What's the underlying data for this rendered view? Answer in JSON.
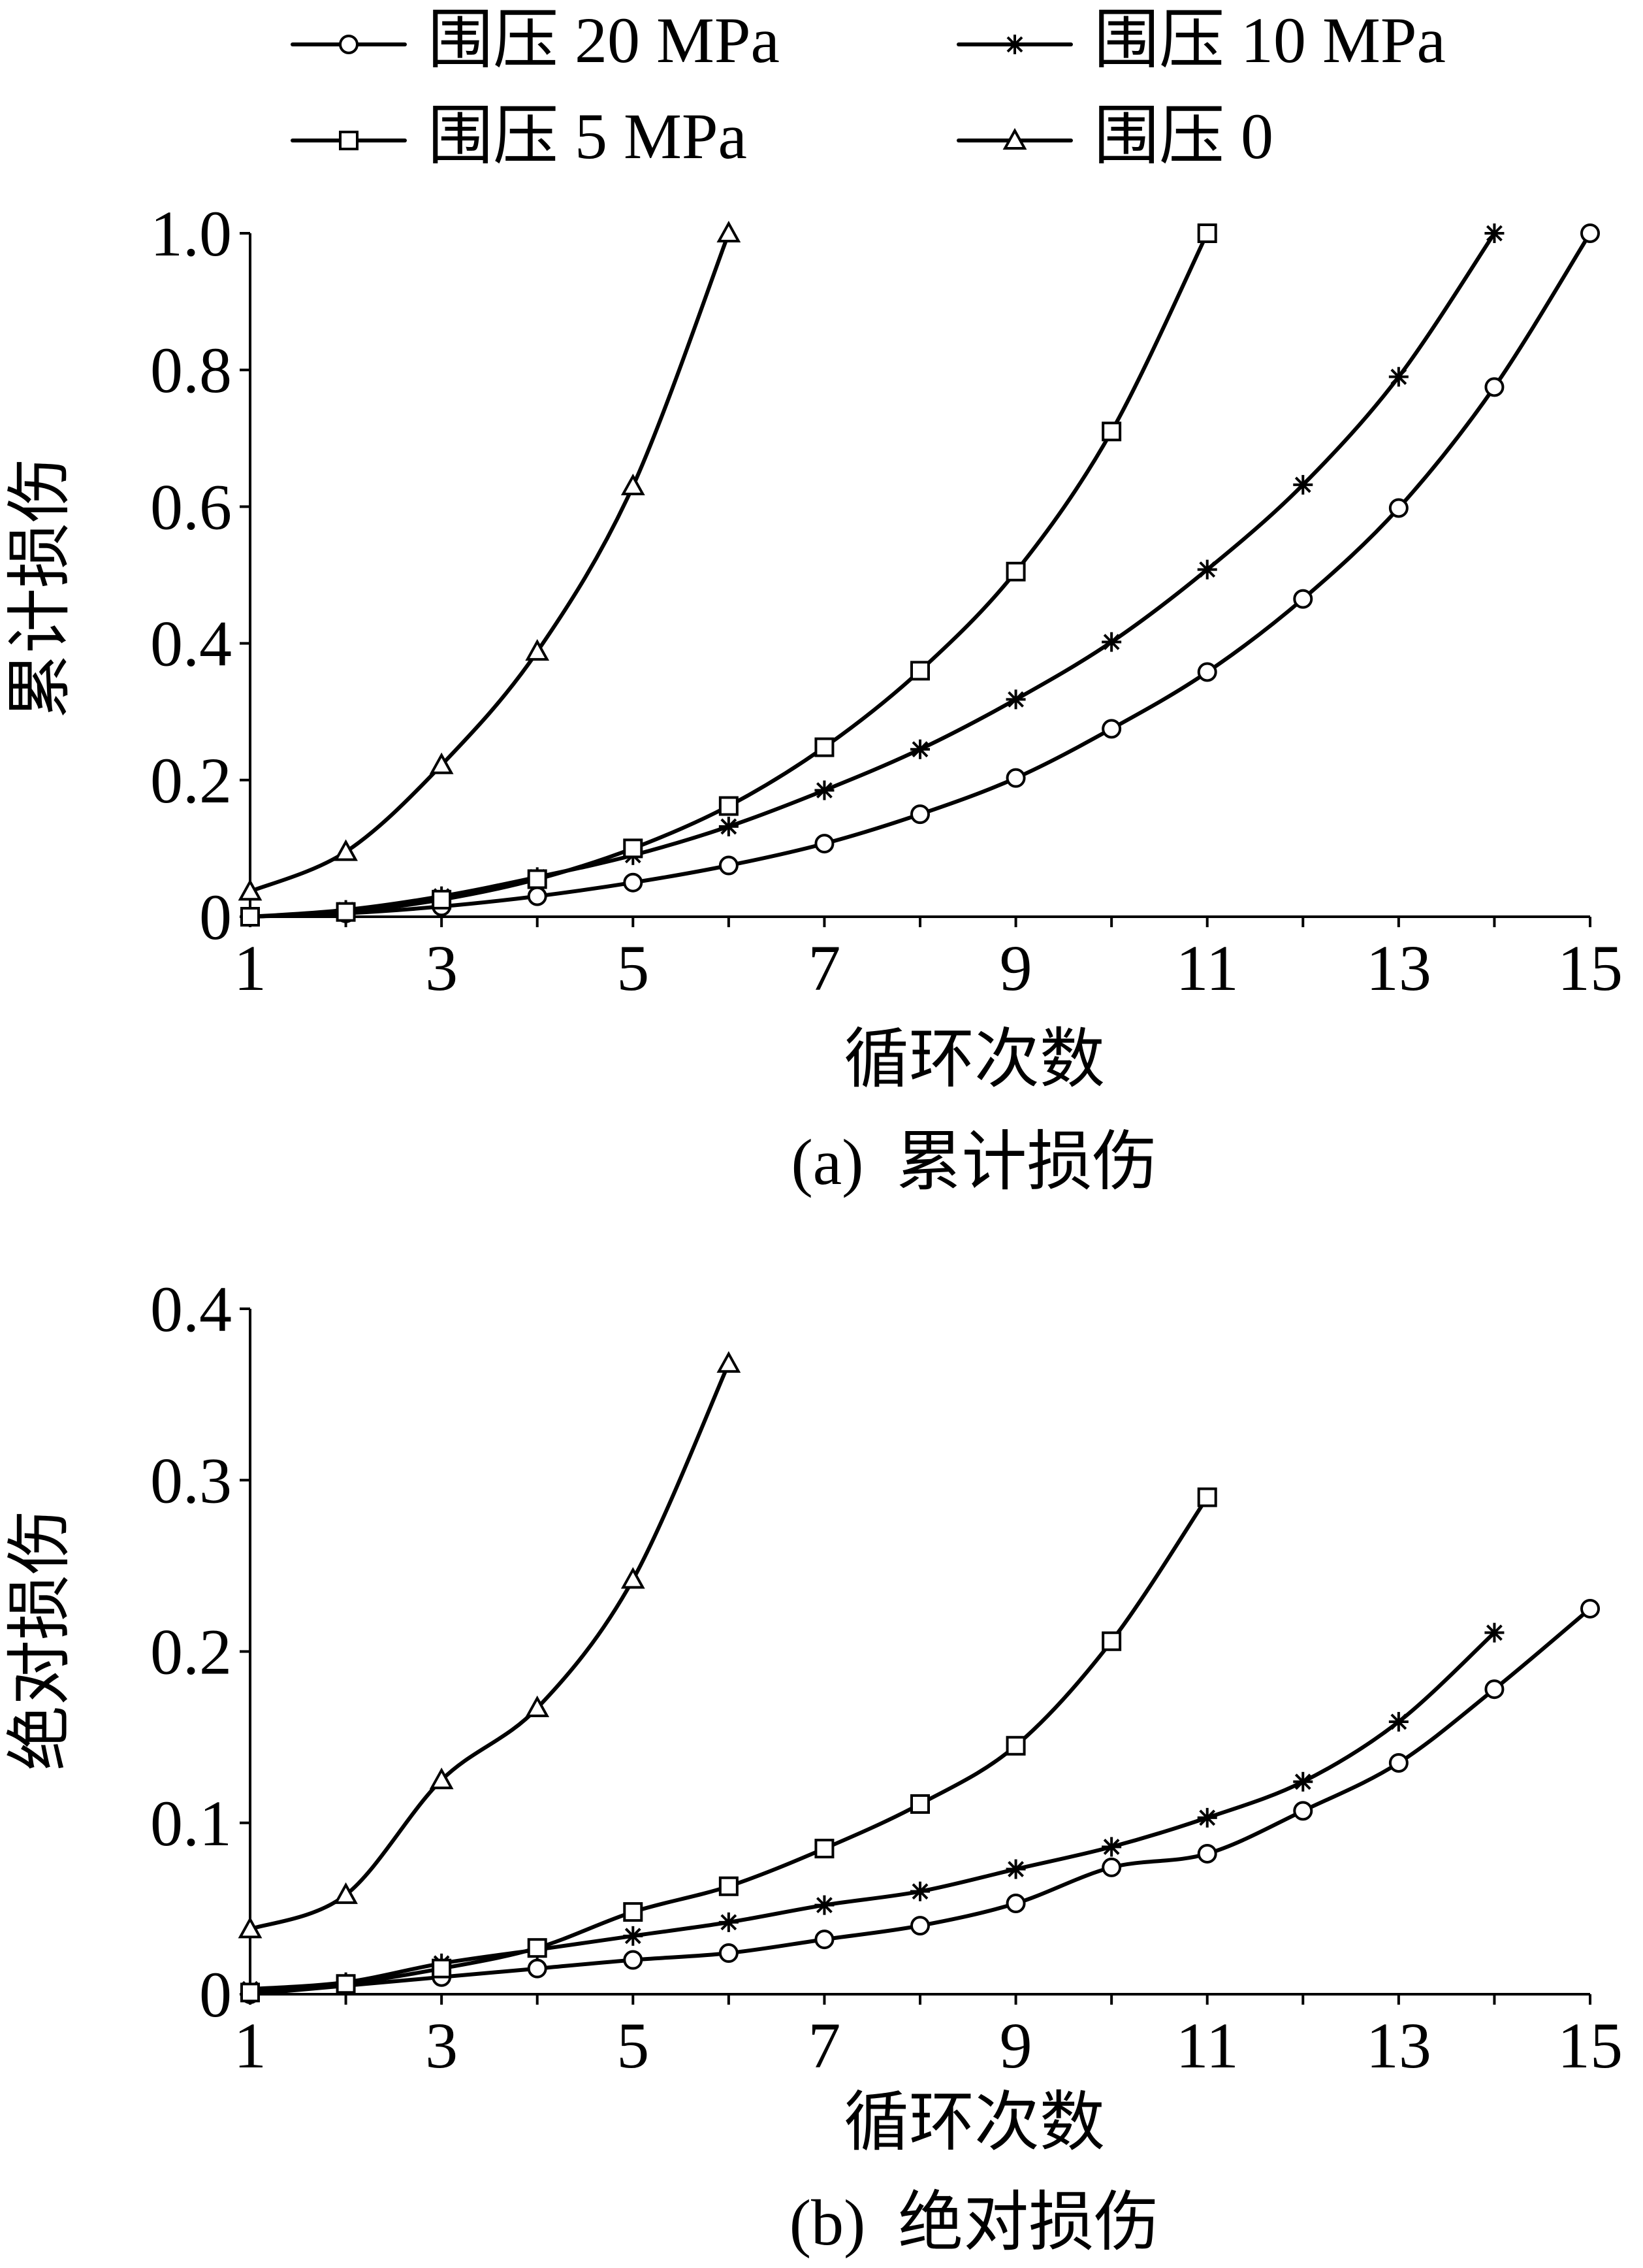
{
  "legend": {
    "items": [
      {
        "label": "围压 20 MPa",
        "marker": "circle"
      },
      {
        "label": "围压 10 MPa",
        "marker": "star"
      },
      {
        "label": "围压 5 MPa",
        "marker": "square"
      },
      {
        "label": "围压 0",
        "marker": "triangle"
      }
    ]
  },
  "chart_data": [
    {
      "type": "line",
      "caption": "(a)  累计损伤",
      "xlabel": "循环次数",
      "ylabel": "累计损伤",
      "xlim": [
        1,
        15
      ],
      "ylim": [
        0,
        1.0
      ],
      "xticks": [
        1,
        3,
        5,
        7,
        9,
        11,
        13,
        15
      ],
      "yticks": [
        {
          "v": 0,
          "label": "0"
        },
        {
          "v": 0.2,
          "label": "0.2"
        },
        {
          "v": 0.4,
          "label": "0.4"
        },
        {
          "v": 0.6,
          "label": "0.6"
        },
        {
          "v": 0.8,
          "label": "0.8"
        },
        {
          "v": 1.0,
          "label": "1.0"
        }
      ],
      "grid": false,
      "legend_position": "top",
      "series": [
        {
          "name": "围压 20 MPa",
          "marker": "circle",
          "x": [
            1,
            2,
            3,
            4,
            5,
            6,
            7,
            8,
            9,
            10,
            11,
            12,
            13,
            14,
            15
          ],
          "y": [
            0,
            0.005,
            0.015,
            0.03,
            0.05,
            0.075,
            0.107,
            0.15,
            0.203,
            0.275,
            0.358,
            0.465,
            0.598,
            0.775,
            1.0
          ]
        },
        {
          "name": "围压 10 MPa",
          "marker": "star",
          "x": [
            1,
            2,
            3,
            4,
            5,
            6,
            7,
            8,
            9,
            10,
            11,
            12,
            13,
            14
          ],
          "y": [
            0,
            0.01,
            0.03,
            0.058,
            0.09,
            0.132,
            0.185,
            0.245,
            0.318,
            0.402,
            0.508,
            0.632,
            0.79,
            1.0
          ]
        },
        {
          "name": "围压 5 MPa",
          "marker": "square",
          "x": [
            1,
            2,
            3,
            4,
            5,
            6,
            7,
            8,
            9,
            10,
            11
          ],
          "y": [
            0,
            0.007,
            0.025,
            0.055,
            0.1,
            0.162,
            0.248,
            0.36,
            0.505,
            0.71,
            1.0
          ]
        },
        {
          "name": "围压 0",
          "marker": "triangle",
          "x": [
            1,
            2,
            3,
            4,
            5,
            6
          ],
          "y": [
            0.037,
            0.095,
            0.222,
            0.388,
            0.63,
            1.0
          ]
        }
      ]
    },
    {
      "type": "line",
      "caption": "(b)  绝对损伤",
      "xlabel": "循环次数",
      "ylabel": "绝对损伤",
      "xlim": [
        1,
        15
      ],
      "ylim": [
        0,
        0.4
      ],
      "xticks": [
        1,
        3,
        5,
        7,
        9,
        11,
        13,
        15
      ],
      "yticks": [
        {
          "v": 0,
          "label": "0"
        },
        {
          "v": 0.1,
          "label": "0.1"
        },
        {
          "v": 0.2,
          "label": "0.2"
        },
        {
          "v": 0.3,
          "label": "0.3"
        },
        {
          "v": 0.4,
          "label": "0.4"
        }
      ],
      "grid": false,
      "legend_position": "top",
      "series": [
        {
          "name": "围压 20 MPa",
          "marker": "circle",
          "x": [
            1,
            2,
            3,
            4,
            5,
            6,
            7,
            8,
            9,
            10,
            11,
            12,
            13,
            14,
            15
          ],
          "y": [
            0,
            0.005,
            0.01,
            0.015,
            0.02,
            0.024,
            0.032,
            0.04,
            0.053,
            0.074,
            0.082,
            0.107,
            0.135,
            0.178,
            0.225
          ]
        },
        {
          "name": "围压 10 MPa",
          "marker": "star",
          "x": [
            1,
            2,
            3,
            4,
            5,
            6,
            7,
            8,
            9,
            10,
            11,
            12,
            13,
            14
          ],
          "y": [
            0.003,
            0.007,
            0.018,
            0.026,
            0.034,
            0.042,
            0.052,
            0.06,
            0.073,
            0.086,
            0.103,
            0.124,
            0.159,
            0.211
          ]
        },
        {
          "name": "围压 5 MPa",
          "marker": "square",
          "x": [
            1,
            2,
            3,
            4,
            5,
            6,
            7,
            8,
            9,
            10,
            11
          ],
          "y": [
            0.001,
            0.006,
            0.015,
            0.027,
            0.048,
            0.063,
            0.085,
            0.111,
            0.145,
            0.206,
            0.29
          ]
        },
        {
          "name": "围压 0",
          "marker": "triangle",
          "x": [
            1,
            2,
            3,
            4,
            5,
            6
          ],
          "y": [
            0.038,
            0.058,
            0.125,
            0.167,
            0.242,
            0.368
          ]
        }
      ]
    }
  ]
}
